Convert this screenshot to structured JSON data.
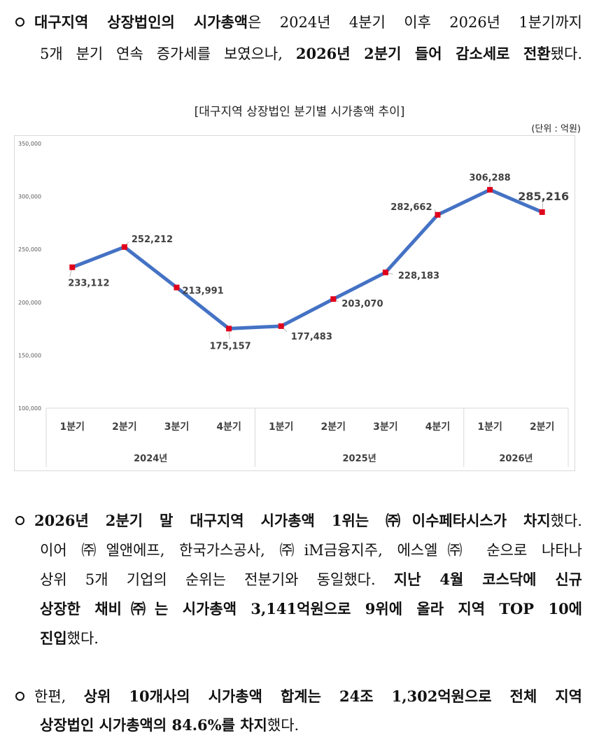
{
  "intro": {
    "line1_bold": "대구지역 상장법인의 시가총액",
    "line1_rest": "은 2024년 4분기 이후 2026년 1분기까지",
    "line2_plain": "5개 분기 연속 증가세를 보였으나, ",
    "line2_bold": "2026년 2분기 들어 감소세로 전환",
    "line2_end": "됐다."
  },
  "chart_header": {
    "title": "[대구지역 상장법인 분기별 시가총액 추이]",
    "unit": "(단위 : 억원)"
  },
  "chart_data": {
    "type": "line",
    "categories": [
      "1분기",
      "2분기",
      "3분기",
      "4분기",
      "1분기",
      "2분기",
      "3분기",
      "4분기",
      "1분기",
      "2분기"
    ],
    "groups": [
      {
        "label": "2024년",
        "span": 4
      },
      {
        "label": "2025년",
        "span": 4
      },
      {
        "label": "2026년",
        "span": 2
      }
    ],
    "series": [
      {
        "values": [
          233112,
          252212,
          213991,
          175157,
          177483,
          203070,
          228183,
          282662,
          306288,
          285216
        ]
      }
    ],
    "data_labels": [
      "233,112",
      "252,212",
      "213,991",
      "175,157",
      "177,483",
      "203,070",
      "228,183",
      "282,662",
      "306,288",
      "285,216"
    ],
    "yticks": [
      "350,000",
      "300,000",
      "250,000",
      "200,000",
      "150,000",
      "100,000"
    ],
    "ylim": [
      100000,
      350000
    ],
    "grid": false,
    "line_color": "#4472C4",
    "marker_color": "#E0001B"
  },
  "para2": {
    "l1_bold": "2026년 2분기 말 대구지역 시가총액 1위는 ㈜이수페타시스가 차지",
    "l1_end": "했다.",
    "l2": "이어 ㈜엘앤에프, 한국가스공사, ㈜iM금융지주, 에스엘㈜ 순으로 나타나",
    "l3_plain": "상위 5개 기업의 순위는 전분기와 동일했다. ",
    "l3_bold": "지난 4월 코스닥에 신규",
    "l4_bold": "상장한 채비㈜는 시가총액 3,141억원으로 9위에 올라 지역 TOP 10에",
    "l5_bold": "진입",
    "l5_end": "했다."
  },
  "para3": {
    "l1_plain": "한편, ",
    "l1_bold": "상위 10개사의 시가총액 합계는 24조 1,302억원으로 전체 지역",
    "l2_bold": "상장법인 시가총액의 84.6%를 차지",
    "l2_end": "했다."
  }
}
